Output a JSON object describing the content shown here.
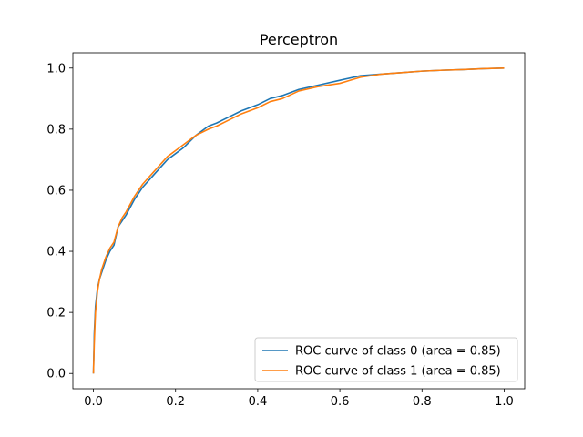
{
  "chart_data": {
    "type": "line",
    "title": "Perceptron",
    "xlabel": "",
    "ylabel": "",
    "xlim": [
      -0.05,
      1.05
    ],
    "ylim": [
      -0.05,
      1.05
    ],
    "xticks": [
      0.0,
      0.2,
      0.4,
      0.6,
      0.8,
      1.0
    ],
    "xtick_labels": [
      "0.0",
      "0.2",
      "0.4",
      "0.6",
      "0.8",
      "1.0"
    ],
    "yticks": [
      0.0,
      0.2,
      0.4,
      0.6,
      0.8,
      1.0
    ],
    "ytick_labels": [
      "0.0",
      "0.2",
      "0.4",
      "0.6",
      "0.8",
      "1.0"
    ],
    "grid": false,
    "legend_position": "lower-right",
    "series": [
      {
        "name": "ROC curve of class 0 (area = 0.85)",
        "color": "#1f77b4",
        "x": [
          0.0,
          0.002,
          0.005,
          0.01,
          0.015,
          0.02,
          0.03,
          0.04,
          0.05,
          0.06,
          0.07,
          0.08,
          0.1,
          0.12,
          0.14,
          0.16,
          0.18,
          0.2,
          0.22,
          0.25,
          0.28,
          0.3,
          0.33,
          0.36,
          0.38,
          0.4,
          0.43,
          0.46,
          0.5,
          0.55,
          0.6,
          0.65,
          0.7,
          0.75,
          0.8,
          0.85,
          0.9,
          0.95,
          1.0
        ],
        "y": [
          0.0,
          0.13,
          0.22,
          0.28,
          0.31,
          0.33,
          0.37,
          0.4,
          0.42,
          0.48,
          0.5,
          0.52,
          0.57,
          0.61,
          0.64,
          0.67,
          0.7,
          0.72,
          0.74,
          0.78,
          0.81,
          0.82,
          0.84,
          0.86,
          0.87,
          0.88,
          0.9,
          0.91,
          0.93,
          0.945,
          0.96,
          0.975,
          0.98,
          0.985,
          0.99,
          0.993,
          0.995,
          0.998,
          1.0
        ]
      },
      {
        "name": "ROC curve of class 1 (area = 0.85)",
        "color": "#ff7f0e",
        "x": [
          0.0,
          0.002,
          0.005,
          0.01,
          0.015,
          0.02,
          0.03,
          0.04,
          0.05,
          0.06,
          0.07,
          0.08,
          0.1,
          0.12,
          0.14,
          0.16,
          0.18,
          0.2,
          0.22,
          0.25,
          0.28,
          0.3,
          0.33,
          0.36,
          0.38,
          0.4,
          0.43,
          0.46,
          0.5,
          0.55,
          0.6,
          0.65,
          0.7,
          0.75,
          0.8,
          0.85,
          0.9,
          0.95,
          1.0
        ],
        "y": [
          0.0,
          0.1,
          0.2,
          0.27,
          0.31,
          0.34,
          0.38,
          0.41,
          0.43,
          0.48,
          0.51,
          0.53,
          0.58,
          0.62,
          0.65,
          0.68,
          0.71,
          0.73,
          0.75,
          0.78,
          0.8,
          0.81,
          0.83,
          0.85,
          0.86,
          0.87,
          0.89,
          0.9,
          0.925,
          0.94,
          0.95,
          0.97,
          0.98,
          0.985,
          0.99,
          0.993,
          0.995,
          0.998,
          1.0
        ]
      }
    ]
  }
}
